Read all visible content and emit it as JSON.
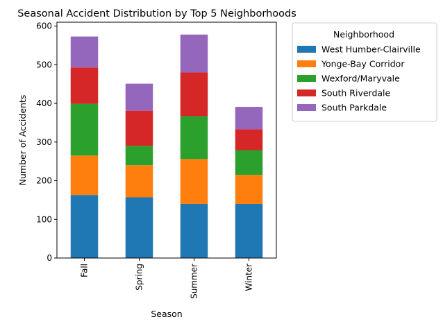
{
  "chart_data": {
    "type": "bar",
    "stacked": true,
    "title": "Seasonal Accident Distribution by Top 5 Neighborhoods",
    "xlabel": "Season",
    "ylabel": "Number of Accidents",
    "categories": [
      "Fall",
      "Spring",
      "Summer",
      "Winter"
    ],
    "ylim": [
      0,
      610
    ],
    "yticks": [
      0,
      100,
      200,
      300,
      400,
      500,
      600
    ],
    "grid": false,
    "legend": {
      "title": "Neighborhood",
      "placement": "outside-right"
    },
    "series": [
      {
        "name": "West Humber-Clairville",
        "color": "#1f77b4",
        "values": [
          163,
          157,
          140,
          140
        ]
      },
      {
        "name": "Yonge-Bay Corridor",
        "color": "#ff7f0e",
        "values": [
          102,
          83,
          116,
          75
        ]
      },
      {
        "name": "Wexford/Maryvale",
        "color": "#2ca02c",
        "values": [
          134,
          50,
          111,
          64
        ]
      },
      {
        "name": "South Riverdale",
        "color": "#d62728",
        "values": [
          94,
          91,
          113,
          54
        ]
      },
      {
        "name": "South Parkdale",
        "color": "#9467bd",
        "values": [
          80,
          70,
          98,
          58
        ]
      }
    ]
  }
}
